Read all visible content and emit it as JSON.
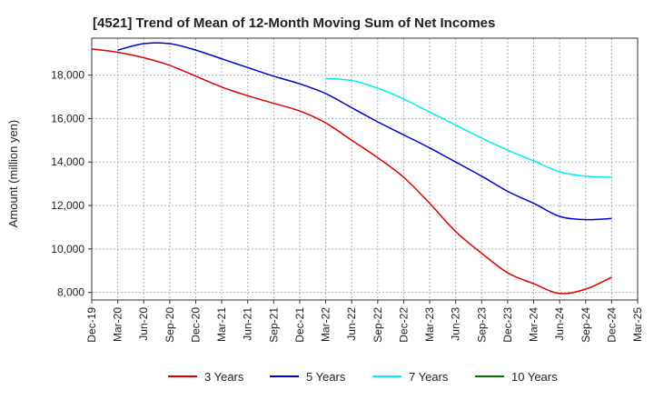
{
  "chart_data": {
    "type": "line",
    "title": "[4521]  Trend of Mean of 12-Month Moving Sum of Net Incomes",
    "xlabel": "",
    "ylabel": "Amount (million yen)",
    "x_ticks": [
      "Dec-19",
      "Mar-20",
      "Jun-20",
      "Sep-20",
      "Dec-20",
      "Mar-21",
      "Jun-21",
      "Sep-21",
      "Dec-21",
      "Mar-22",
      "Jun-22",
      "Sep-22",
      "Dec-22",
      "Mar-23",
      "Jun-23",
      "Sep-23",
      "Dec-23",
      "Mar-24",
      "Jun-24",
      "Sep-24",
      "Dec-24",
      "Mar-25"
    ],
    "y_ticks": [
      "8,000",
      "10,000",
      "12,000",
      "14,000",
      "16,000",
      "18,000"
    ],
    "y_tick_values": [
      8000,
      10000,
      12000,
      14000,
      16000,
      18000
    ],
    "ylim": [
      7650,
      19700
    ],
    "grid": true,
    "legend_position": "bottom",
    "series": [
      {
        "name": "3 Years",
        "color": "#dd0000",
        "points": [
          [
            "Dec-19",
            19200
          ],
          [
            "Mar-20",
            19050
          ],
          [
            "Jun-20",
            18800
          ],
          [
            "Sep-20",
            18450
          ],
          [
            "Dec-20",
            17950
          ],
          [
            "Mar-21",
            17450
          ],
          [
            "Jun-21",
            17050
          ],
          [
            "Sep-21",
            16700
          ],
          [
            "Dec-21",
            16350
          ],
          [
            "Mar-22",
            15800
          ],
          [
            "Jun-22",
            15000
          ],
          [
            "Sep-22",
            14200
          ],
          [
            "Dec-22",
            13300
          ],
          [
            "Mar-23",
            12100
          ],
          [
            "Jun-23",
            10800
          ],
          [
            "Sep-23",
            9800
          ],
          [
            "Dec-23",
            8900
          ],
          [
            "Mar-24",
            8400
          ],
          [
            "Jun-24",
            7950
          ],
          [
            "Sep-24",
            8150
          ],
          [
            "Dec-24",
            8700
          ]
        ]
      },
      {
        "name": "5 Years",
        "color": "#0000cc",
        "points": [
          [
            "Mar-20",
            19150
          ],
          [
            "Jun-20",
            19450
          ],
          [
            "Sep-20",
            19450
          ],
          [
            "Dec-20",
            19150
          ],
          [
            "Mar-21",
            18750
          ],
          [
            "Jun-21",
            18350
          ],
          [
            "Sep-21",
            17950
          ],
          [
            "Dec-21",
            17600
          ],
          [
            "Mar-22",
            17150
          ],
          [
            "Jun-22",
            16500
          ],
          [
            "Sep-22",
            15850
          ],
          [
            "Dec-22",
            15250
          ],
          [
            "Mar-23",
            14650
          ],
          [
            "Jun-23",
            14000
          ],
          [
            "Sep-23",
            13350
          ],
          [
            "Dec-23",
            12650
          ],
          [
            "Mar-24",
            12100
          ],
          [
            "Jun-24",
            11500
          ],
          [
            "Sep-24",
            11350
          ],
          [
            "Dec-24",
            11400
          ]
        ]
      },
      {
        "name": "7 Years",
        "color": "#00eeee",
        "points": [
          [
            "Mar-22",
            17850
          ],
          [
            "Jun-22",
            17750
          ],
          [
            "Sep-22",
            17400
          ],
          [
            "Dec-22",
            16900
          ],
          [
            "Mar-23",
            16300
          ],
          [
            "Jun-23",
            15700
          ],
          [
            "Sep-23",
            15100
          ],
          [
            "Dec-23",
            14550
          ],
          [
            "Mar-24",
            14050
          ],
          [
            "Jun-24",
            13550
          ],
          [
            "Sep-24",
            13350
          ],
          [
            "Dec-24",
            13300
          ]
        ]
      },
      {
        "name": "10 Years",
        "color": "#007700",
        "points": []
      }
    ]
  }
}
